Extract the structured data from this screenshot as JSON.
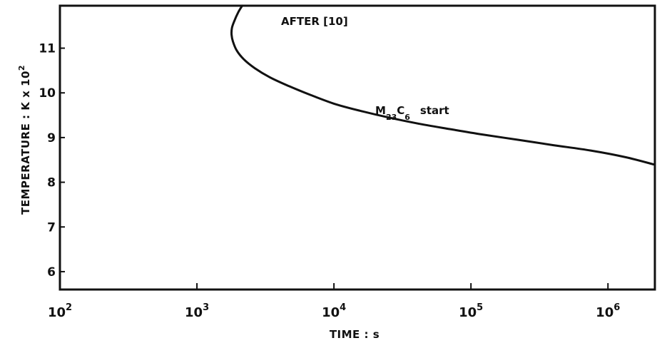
{
  "chart_data": {
    "type": "line",
    "title": "",
    "xlabel": "TIME : s",
    "ylabel": "TEMPERATURE : K x 10²",
    "x_scale": "log",
    "xlim": [
      100,
      2200000
    ],
    "ylim": [
      5.6,
      11.95
    ],
    "grid": false,
    "legend": "none",
    "x_ticks": [
      {
        "value": 100,
        "base": "10",
        "exp": "2"
      },
      {
        "value": 1000,
        "base": "10",
        "exp": "3"
      },
      {
        "value": 10000,
        "base": "10",
        "exp": "4"
      },
      {
        "value": 100000,
        "base": "10",
        "exp": "5"
      },
      {
        "value": 1000000,
        "base": "10",
        "exp": "6"
      }
    ],
    "y_ticks": [
      "6",
      "7",
      "8",
      "9",
      "10",
      "11"
    ],
    "y_tick_values": [
      6,
      7,
      8,
      9,
      10,
      11
    ],
    "ylabel_parts": {
      "main": "TEMPERATURE : K x 10",
      "sup": "2"
    },
    "series": [
      {
        "x": [
          2140,
          2000,
          1870,
          1800,
          1790,
          1830,
          1950,
          2200,
          2650,
          3400,
          4700,
          6800,
          10200,
          15500,
          25000,
          40000,
          70000,
          120000,
          220000,
          400000,
          750000,
          1350000,
          2150000
        ],
        "y": [
          11.95,
          11.8,
          11.6,
          11.45,
          11.3,
          11.15,
          10.95,
          10.75,
          10.55,
          10.35,
          10.15,
          9.95,
          9.75,
          9.6,
          9.45,
          9.32,
          9.19,
          9.07,
          8.95,
          8.83,
          8.71,
          8.56,
          8.4
        ]
      }
    ],
    "annotations": {
      "after_ref": "AFTER [10]",
      "phase_main": "M",
      "phase_sub1": "23",
      "phase_mid": "C",
      "phase_sub2": "6",
      "phase_tail": "start"
    }
  }
}
